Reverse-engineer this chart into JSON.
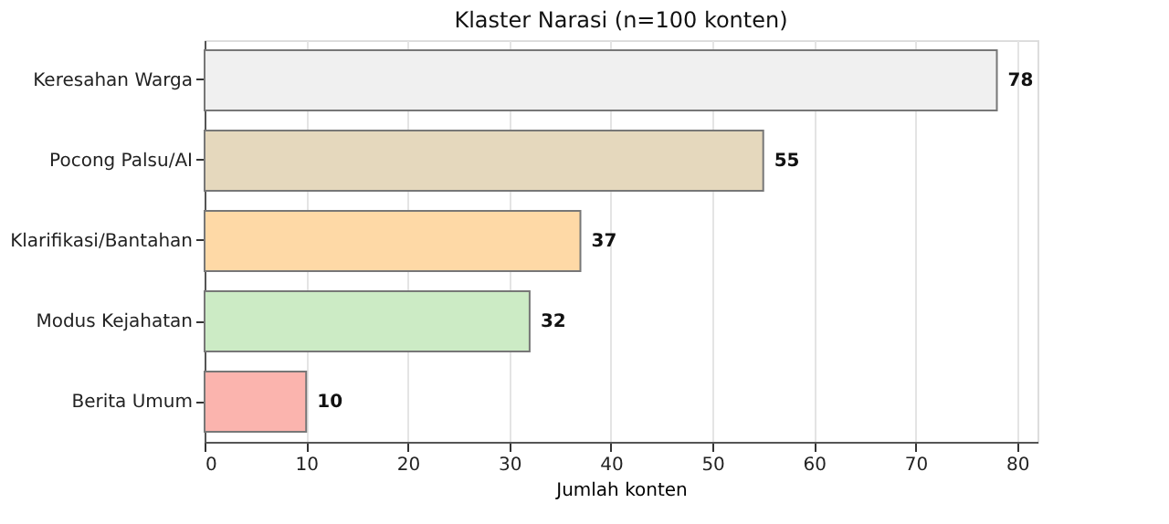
{
  "chart_data": {
    "type": "bar",
    "orientation": "horizontal",
    "title": "Klaster Narasi (n=100 konten)",
    "xlabel": "Jumlah konten",
    "categories": [
      "Keresahan Warga",
      "Pocong Palsu/AI",
      "Klarifikasi/Bantahan",
      "Modus Kejahatan",
      "Berita Umum"
    ],
    "values": [
      78,
      55,
      37,
      32,
      10
    ],
    "colors": [
      "#f0f0f0",
      "#e5d8bd",
      "#fed9a6",
      "#ccebc5",
      "#fbb4ae"
    ],
    "xlim": [
      0,
      82
    ],
    "xticks": [
      0,
      10,
      20,
      30,
      40,
      50,
      60,
      70,
      80
    ],
    "grid": "x",
    "data_labels": true
  }
}
